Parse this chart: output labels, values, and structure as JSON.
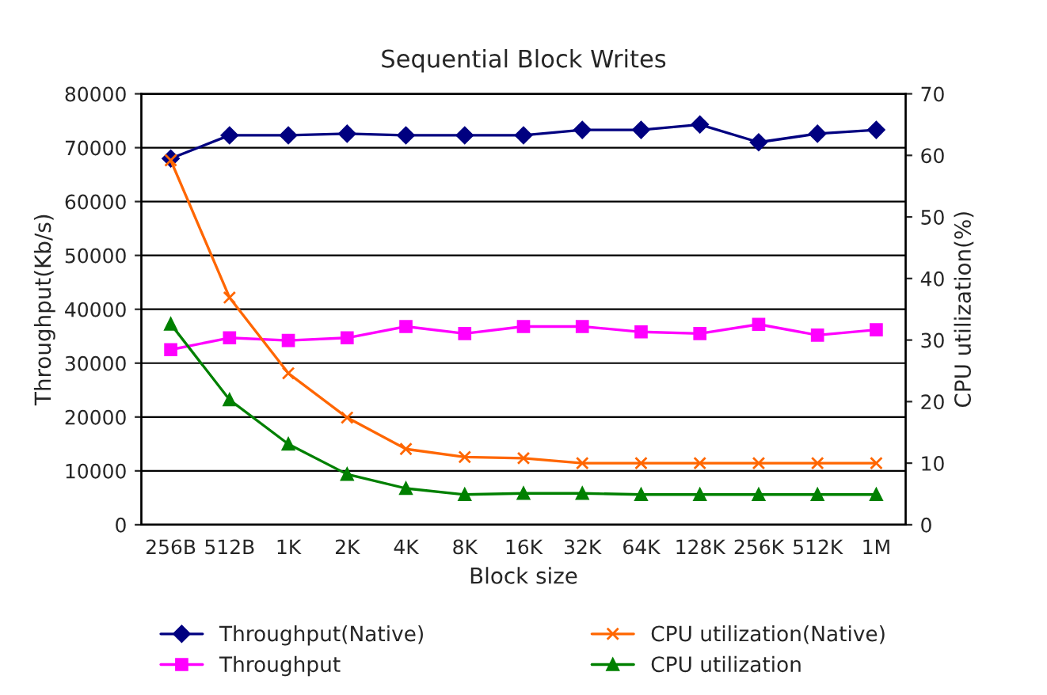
{
  "chart_data": {
    "type": "line",
    "title": "Sequential Block Writes",
    "xlabel": "Block size",
    "ylabel": "Throughput(Kb/s)",
    "y2label": "CPU utilization(%)",
    "categories": [
      "256B",
      "512B",
      "1K",
      "2K",
      "4K",
      "8K",
      "16K",
      "32K",
      "64K",
      "128K",
      "256K",
      "512K",
      "1M"
    ],
    "series": [
      {
        "name": "Throughput(Native)",
        "color": "#000080",
        "marker": "diamond",
        "values": [
          68000,
          72300,
          72300,
          72600,
          72300,
          72300,
          72300,
          73300,
          73300,
          74300,
          71000,
          72600,
          73300
        ]
      },
      {
        "name": "Throughput",
        "color": "#ff00ff",
        "marker": "square",
        "values": [
          32500,
          34700,
          34200,
          34700,
          36800,
          35500,
          36800,
          36800,
          35800,
          35500,
          37200,
          35200,
          36200
        ]
      },
      {
        "name": "CPU utilization(Native)",
        "color": "#ff6600",
        "marker": "cross",
        "axis": "y2",
        "values": [
          59.2,
          36.9,
          24.6,
          17.4,
          12.3,
          11.0,
          10.8,
          10.0,
          10.0,
          10.0,
          10.0,
          10.0,
          10.0
        ]
      },
      {
        "name": "CPU utilization",
        "color": "#008000",
        "marker": "triangle",
        "axis": "y2",
        "values": [
          32.6,
          20.3,
          13.1,
          8.2,
          5.9,
          4.9,
          5.1,
          5.1,
          4.9,
          4.9,
          4.9,
          4.9,
          4.9
        ]
      }
    ],
    "ylim": [
      0,
      80000
    ],
    "yticks": [
      0,
      10000,
      20000,
      30000,
      40000,
      50000,
      60000,
      70000,
      80000
    ],
    "y2lim": [
      0,
      70
    ],
    "y2ticks": [
      0,
      10,
      20,
      30,
      40,
      50,
      60,
      70
    ],
    "grid": "y",
    "legend": "bottom",
    "line_style": "solid"
  }
}
